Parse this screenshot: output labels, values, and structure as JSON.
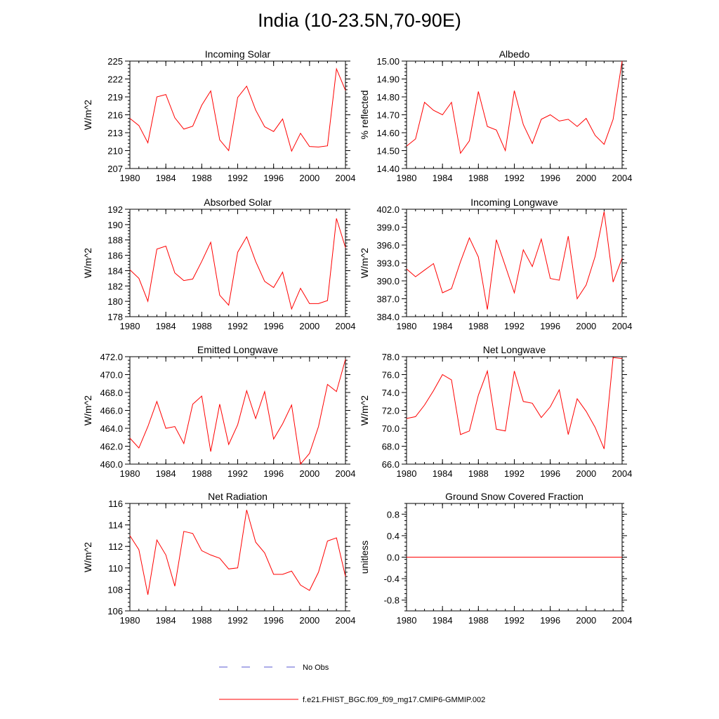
{
  "title": "India (10-23.5N,70-90E)",
  "legend": [
    {
      "label": "No Obs",
      "style": "dashed",
      "color": "#5a5ad2"
    },
    {
      "label": "f.e21.FHIST_BGC.f09_f09_mg17.CMIP6-GMMIP.002",
      "style": "solid",
      "color": "#ff0000"
    }
  ],
  "chart_data": [
    {
      "type": "line",
      "title": "Incoming Solar",
      "ylabel": "W/m^2",
      "xlim": [
        1980,
        2004
      ],
      "ylim": [
        207,
        225
      ],
      "xticks": [
        1980,
        1984,
        1988,
        1992,
        1996,
        2000,
        2004
      ],
      "xtick_labels": [
        "1980",
        "1984",
        "1988",
        "1992",
        "1996",
        "2000",
        "2004"
      ],
      "yticks": [
        207,
        210,
        213,
        216,
        219,
        222,
        225
      ],
      "ytick_labels": [
        "207",
        "210",
        "213",
        "216",
        "219",
        "222",
        "225"
      ],
      "x": [
        1980,
        1981,
        1982,
        1983,
        1984,
        1985,
        1986,
        1987,
        1988,
        1989,
        1990,
        1991,
        1992,
        1993,
        1994,
        1995,
        1996,
        1997,
        1998,
        1999,
        2000,
        2001,
        2002,
        2003,
        2004
      ],
      "series": [
        {
          "name": "f.e21.FHIST_BGC.f09_f09_mg17.CMIP6-GMMIP.002",
          "color": "#ff0000",
          "values": [
            215.4,
            214.2,
            211.3,
            219.0,
            219.4,
            215.5,
            213.6,
            214.1,
            217.6,
            220.0,
            211.8,
            210.0,
            218.9,
            220.8,
            216.8,
            214.0,
            213.2,
            215.3,
            209.9,
            212.9,
            210.7,
            210.6,
            210.8,
            223.7,
            220.1
          ]
        }
      ]
    },
    {
      "type": "line",
      "title": "Albedo",
      "ylabel": "% reflected",
      "xlim": [
        1980,
        2004
      ],
      "ylim": [
        14.4,
        15.0
      ],
      "xticks": [
        1980,
        1984,
        1988,
        1992,
        1996,
        2000,
        2004
      ],
      "xtick_labels": [
        "1980",
        "1984",
        "1988",
        "1992",
        "1996",
        "2000",
        "2004"
      ],
      "yticks": [
        14.4,
        14.5,
        14.6,
        14.7,
        14.8,
        14.9,
        15.0
      ],
      "ytick_labels": [
        "14.40",
        "14.50",
        "14.60",
        "14.70",
        "14.80",
        "14.90",
        "15.00"
      ],
      "x": [
        1980,
        1981,
        1982,
        1983,
        1984,
        1985,
        1986,
        1987,
        1988,
        1989,
        1990,
        1991,
        1992,
        1993,
        1994,
        1995,
        1996,
        1997,
        1998,
        1999,
        2000,
        2001,
        2002,
        2003,
        2004
      ],
      "series": [
        {
          "name": "f.e21.FHIST_BGC.f09_f09_mg17.CMIP6-GMMIP.002",
          "color": "#ff0000",
          "values": [
            14.525,
            14.565,
            14.77,
            14.725,
            14.7,
            14.77,
            14.485,
            14.555,
            14.83,
            14.635,
            14.615,
            14.5,
            14.835,
            14.645,
            14.54,
            14.675,
            14.7,
            14.665,
            14.675,
            14.635,
            14.68,
            14.585,
            14.535,
            14.675,
            15.0
          ]
        }
      ]
    },
    {
      "type": "line",
      "title": "Absorbed Solar",
      "ylabel": "W/m^2",
      "xlim": [
        1980,
        2004
      ],
      "ylim": [
        178,
        192
      ],
      "xticks": [
        1980,
        1984,
        1988,
        1992,
        1996,
        2000,
        2004
      ],
      "xtick_labels": [
        "1980",
        "1984",
        "1988",
        "1992",
        "1996",
        "2000",
        "2004"
      ],
      "yticks": [
        178,
        180,
        182,
        184,
        186,
        188,
        190,
        192
      ],
      "ytick_labels": [
        "178",
        "180",
        "182",
        "184",
        "186",
        "188",
        "190",
        "192"
      ],
      "x": [
        1980,
        1981,
        1982,
        1983,
        1984,
        1985,
        1986,
        1987,
        1988,
        1989,
        1990,
        1991,
        1992,
        1993,
        1994,
        1995,
        1996,
        1997,
        1998,
        1999,
        2000,
        2001,
        2002,
        2003,
        2004
      ],
      "series": [
        {
          "name": "f.e21.FHIST_BGC.f09_f09_mg17.CMIP6-GMMIP.002",
          "color": "#ff0000",
          "values": [
            184.1,
            183.0,
            180.0,
            186.8,
            187.2,
            183.7,
            182.7,
            182.9,
            185.2,
            187.7,
            180.8,
            179.5,
            186.4,
            188.4,
            185.2,
            182.6,
            181.8,
            183.8,
            179.0,
            181.7,
            179.7,
            179.7,
            180.1,
            190.8,
            187.0
          ]
        }
      ]
    },
    {
      "type": "line",
      "title": "Incoming Longwave",
      "ylabel": "W/m^2",
      "xlim": [
        1980,
        2004
      ],
      "ylim": [
        384,
        402
      ],
      "xticks": [
        1980,
        1984,
        1988,
        1992,
        1996,
        2000,
        2004
      ],
      "xtick_labels": [
        "1980",
        "1984",
        "1988",
        "1992",
        "1996",
        "2000",
        "2004"
      ],
      "yticks": [
        384,
        387,
        390,
        393,
        396,
        399,
        402
      ],
      "ytick_labels": [
        "384.0",
        "387.0",
        "390.0",
        "393.0",
        "396.0",
        "399.0",
        "402.0"
      ],
      "x": [
        1980,
        1981,
        1982,
        1983,
        1984,
        1985,
        1986,
        1987,
        1988,
        1989,
        1990,
        1991,
        1992,
        1993,
        1994,
        1995,
        1996,
        1997,
        1998,
        1999,
        2000,
        2001,
        2002,
        2003,
        2004
      ],
      "series": [
        {
          "name": "f.e21.FHIST_BGC.f09_f09_mg17.CMIP6-GMMIP.002",
          "color": "#ff0000",
          "values": [
            392.0,
            390.7,
            391.8,
            392.9,
            388.0,
            388.7,
            393.2,
            397.2,
            394.0,
            385.2,
            396.9,
            392.5,
            388.0,
            395.2,
            392.4,
            397.0,
            390.4,
            390.1,
            397.5,
            387.0,
            389.3,
            394.1,
            401.6,
            389.8,
            393.8
          ]
        }
      ]
    },
    {
      "type": "line",
      "title": "Emitted Longwave",
      "ylabel": "W/m^2",
      "xlim": [
        1980,
        2004
      ],
      "ylim": [
        460,
        472
      ],
      "xticks": [
        1980,
        1984,
        1988,
        1992,
        1996,
        2000,
        2004
      ],
      "xtick_labels": [
        "1980",
        "1984",
        "1988",
        "1992",
        "1996",
        "2000",
        "2004"
      ],
      "yticks": [
        460,
        462,
        464,
        466,
        468,
        470,
        472
      ],
      "ytick_labels": [
        "460.0",
        "462.0",
        "464.0",
        "466.0",
        "468.0",
        "470.0",
        "472.0"
      ],
      "x": [
        1980,
        1981,
        1982,
        1983,
        1984,
        1985,
        1986,
        1987,
        1988,
        1989,
        1990,
        1991,
        1992,
        1993,
        1994,
        1995,
        1996,
        1997,
        1998,
        1999,
        2000,
        2001,
        2002,
        2003,
        2004
      ],
      "series": [
        {
          "name": "f.e21.FHIST_BGC.f09_f09_mg17.CMIP6-GMMIP.002",
          "color": "#ff0000",
          "values": [
            462.9,
            461.8,
            464.2,
            467.0,
            464.0,
            464.2,
            462.3,
            466.7,
            467.6,
            461.4,
            466.7,
            462.2,
            464.4,
            468.2,
            465.1,
            468.1,
            462.8,
            464.5,
            466.6,
            460.0,
            461.2,
            464.2,
            468.9,
            468.1,
            471.7
          ]
        }
      ]
    },
    {
      "type": "line",
      "title": "Net Longwave",
      "ylabel": "W/m^2",
      "xlim": [
        1980,
        2004
      ],
      "ylim": [
        66,
        78
      ],
      "xticks": [
        1980,
        1984,
        1988,
        1992,
        1996,
        2000,
        2004
      ],
      "xtick_labels": [
        "1980",
        "1984",
        "1988",
        "1992",
        "1996",
        "2000",
        "2004"
      ],
      "yticks": [
        66,
        68,
        70,
        72,
        74,
        76,
        78
      ],
      "ytick_labels": [
        "66.0",
        "68.0",
        "70.0",
        "72.0",
        "74.0",
        "76.0",
        "78.0"
      ],
      "x": [
        1980,
        1981,
        1982,
        1983,
        1984,
        1985,
        1986,
        1987,
        1988,
        1989,
        1990,
        1991,
        1992,
        1993,
        1994,
        1995,
        1996,
        1997,
        1998,
        1999,
        2000,
        2001,
        2002,
        2003,
        2004
      ],
      "series": [
        {
          "name": "f.e21.FHIST_BGC.f09_f09_mg17.CMIP6-GMMIP.002",
          "color": "#ff0000",
          "values": [
            71.1,
            71.3,
            72.6,
            74.2,
            76.0,
            75.4,
            69.3,
            69.7,
            73.7,
            76.4,
            69.9,
            69.7,
            76.4,
            73.0,
            72.8,
            71.2,
            72.4,
            74.3,
            69.3,
            73.3,
            71.9,
            70.1,
            67.7,
            77.9,
            77.8
          ]
        }
      ]
    },
    {
      "type": "line",
      "title": "Net Radiation",
      "ylabel": "W/m^2",
      "xlim": [
        1980,
        2004
      ],
      "ylim": [
        106,
        116
      ],
      "xticks": [
        1980,
        1984,
        1988,
        1992,
        1996,
        2000,
        2004
      ],
      "xtick_labels": [
        "1980",
        "1984",
        "1988",
        "1992",
        "1996",
        "2000",
        "2004"
      ],
      "yticks": [
        106,
        108,
        110,
        112,
        114,
        116
      ],
      "ytick_labels": [
        "106",
        "108",
        "110",
        "112",
        "114",
        "116"
      ],
      "x": [
        1980,
        1981,
        1982,
        1983,
        1984,
        1985,
        1986,
        1987,
        1988,
        1989,
        1990,
        1991,
        1992,
        1993,
        1994,
        1995,
        1996,
        1997,
        1998,
        1999,
        2000,
        2001,
        2002,
        2003,
        2004
      ],
      "series": [
        {
          "name": "f.e21.FHIST_BGC.f09_f09_mg17.CMIP6-GMMIP.002",
          "color": "#ff0000",
          "values": [
            113.0,
            111.7,
            107.5,
            112.6,
            111.2,
            108.3,
            113.4,
            113.2,
            111.6,
            111.2,
            110.9,
            109.9,
            110.0,
            115.4,
            112.4,
            111.4,
            109.4,
            109.4,
            109.7,
            108.4,
            107.9,
            109.6,
            112.5,
            112.8,
            109.2
          ]
        }
      ]
    },
    {
      "type": "line",
      "title": "Ground Snow Covered Fraction",
      "ylabel": "unitless",
      "xlim": [
        1980,
        2004
      ],
      "ylim": [
        -1.0,
        1.0
      ],
      "xticks": [
        1980,
        1984,
        1988,
        1992,
        1996,
        2000,
        2004
      ],
      "xtick_labels": [
        "1980",
        "1984",
        "1988",
        "1992",
        "1996",
        "2000",
        "2004"
      ],
      "yticks": [
        -0.8,
        -0.4,
        0.0,
        0.4,
        0.8
      ],
      "ytick_labels": [
        "-0.8",
        "-0.4",
        "0.0",
        "0.4",
        "0.8"
      ],
      "x": [
        1980,
        1981,
        1982,
        1983,
        1984,
        1985,
        1986,
        1987,
        1988,
        1989,
        1990,
        1991,
        1992,
        1993,
        1994,
        1995,
        1996,
        1997,
        1998,
        1999,
        2000,
        2001,
        2002,
        2003,
        2004
      ],
      "series": [
        {
          "name": "f.e21.FHIST_BGC.f09_f09_mg17.CMIP6-GMMIP.002",
          "color": "#ff0000",
          "values": [
            0,
            0,
            0,
            0,
            0,
            0,
            0,
            0,
            0,
            0,
            0,
            0,
            0,
            0,
            0,
            0,
            0,
            0,
            0,
            0,
            0,
            0,
            0,
            0,
            0
          ]
        }
      ]
    }
  ]
}
